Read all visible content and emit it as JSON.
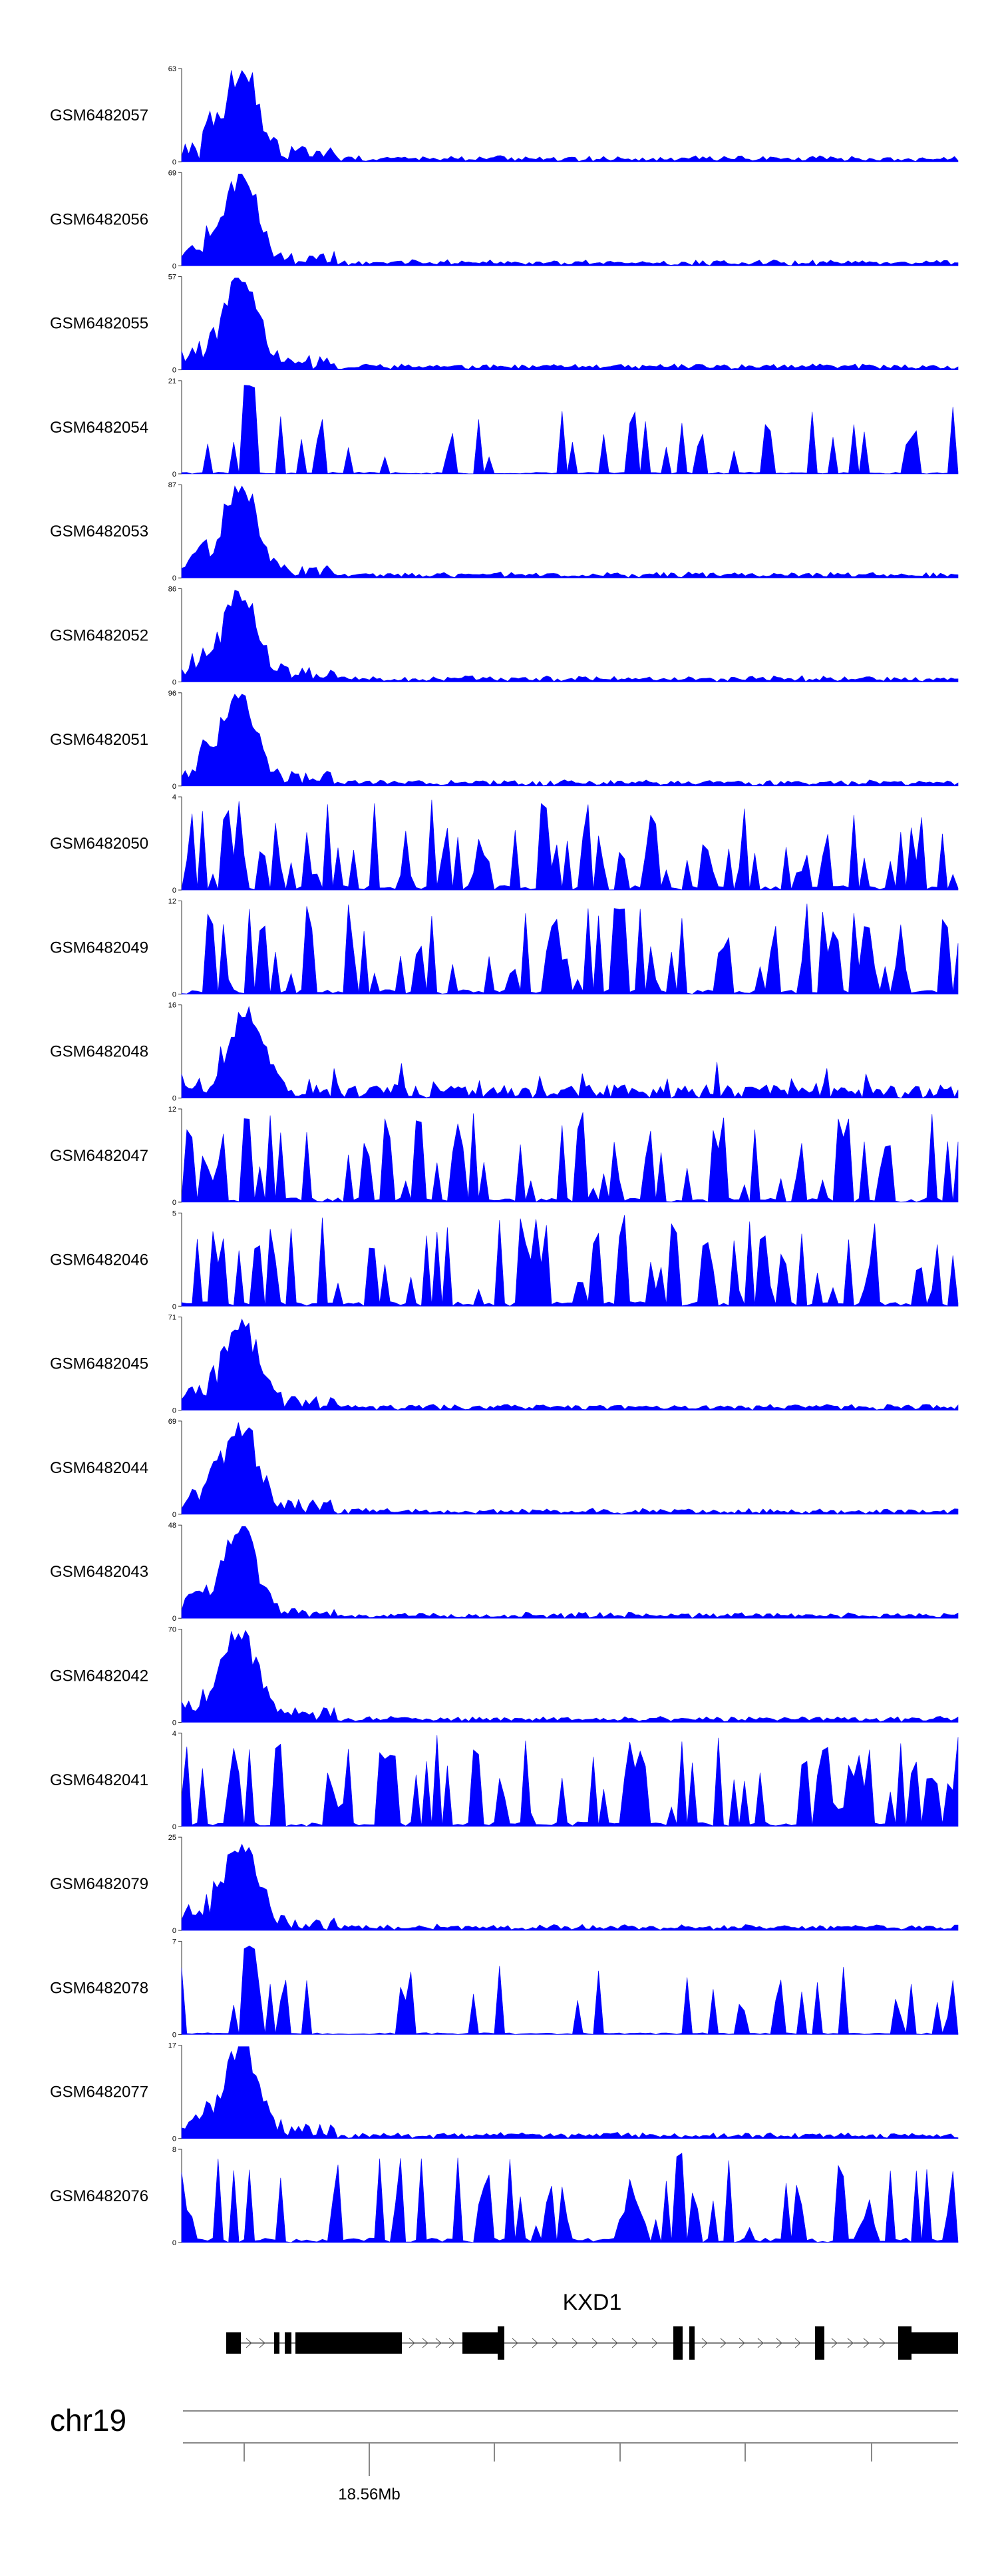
{
  "chart_data": {
    "type": "area",
    "color": "#0000ff",
    "chromosome": "chr19",
    "gene": "KXD1",
    "axis_tick_label": "18.56Mb",
    "tracks": [
      {
        "name": "GSM6482057",
        "ymax": "63",
        "ymin": "0",
        "profile": "peak"
      },
      {
        "name": "GSM6482056",
        "ymax": "69",
        "ymin": "0",
        "profile": "peak"
      },
      {
        "name": "GSM6482055",
        "ymax": "57",
        "ymin": "0",
        "profile": "peak"
      },
      {
        "name": "GSM6482054",
        "ymax": "21",
        "ymin": "0",
        "profile": "sparse"
      },
      {
        "name": "GSM6482053",
        "ymax": "87",
        "ymin": "0",
        "profile": "peak"
      },
      {
        "name": "GSM6482052",
        "ymax": "86",
        "ymin": "0",
        "profile": "peak"
      },
      {
        "name": "GSM6482051",
        "ymax": "96",
        "ymin": "0",
        "profile": "peak"
      },
      {
        "name": "GSM6482050",
        "ymax": "4",
        "ymin": "0",
        "profile": "noise"
      },
      {
        "name": "GSM6482049",
        "ymax": "12",
        "ymin": "0",
        "profile": "noise"
      },
      {
        "name": "GSM6482048",
        "ymax": "16",
        "ymin": "0",
        "profile": "medium"
      },
      {
        "name": "GSM6482047",
        "ymax": "12",
        "ymin": "0",
        "profile": "noise"
      },
      {
        "name": "GSM6482046",
        "ymax": "5",
        "ymin": "0",
        "profile": "noise"
      },
      {
        "name": "GSM6482045",
        "ymax": "71",
        "ymin": "0",
        "profile": "peak"
      },
      {
        "name": "GSM6482044",
        "ymax": "69",
        "ymin": "0",
        "profile": "peak"
      },
      {
        "name": "GSM6482043",
        "ymax": "48",
        "ymin": "0",
        "profile": "peak"
      },
      {
        "name": "GSM6482042",
        "ymax": "70",
        "ymin": "0",
        "profile": "peak"
      },
      {
        "name": "GSM6482041",
        "ymax": "4",
        "ymin": "0",
        "profile": "noise"
      },
      {
        "name": "GSM6482079",
        "ymax": "25",
        "ymin": "0",
        "profile": "peak"
      },
      {
        "name": "GSM6482078",
        "ymax": "7",
        "ymin": "0",
        "profile": "sparse"
      },
      {
        "name": "GSM6482077",
        "ymax": "17",
        "ymin": "0",
        "profile": "peak"
      },
      {
        "name": "GSM6482076",
        "ymax": "8",
        "ymin": "0",
        "profile": "noise"
      }
    ]
  }
}
